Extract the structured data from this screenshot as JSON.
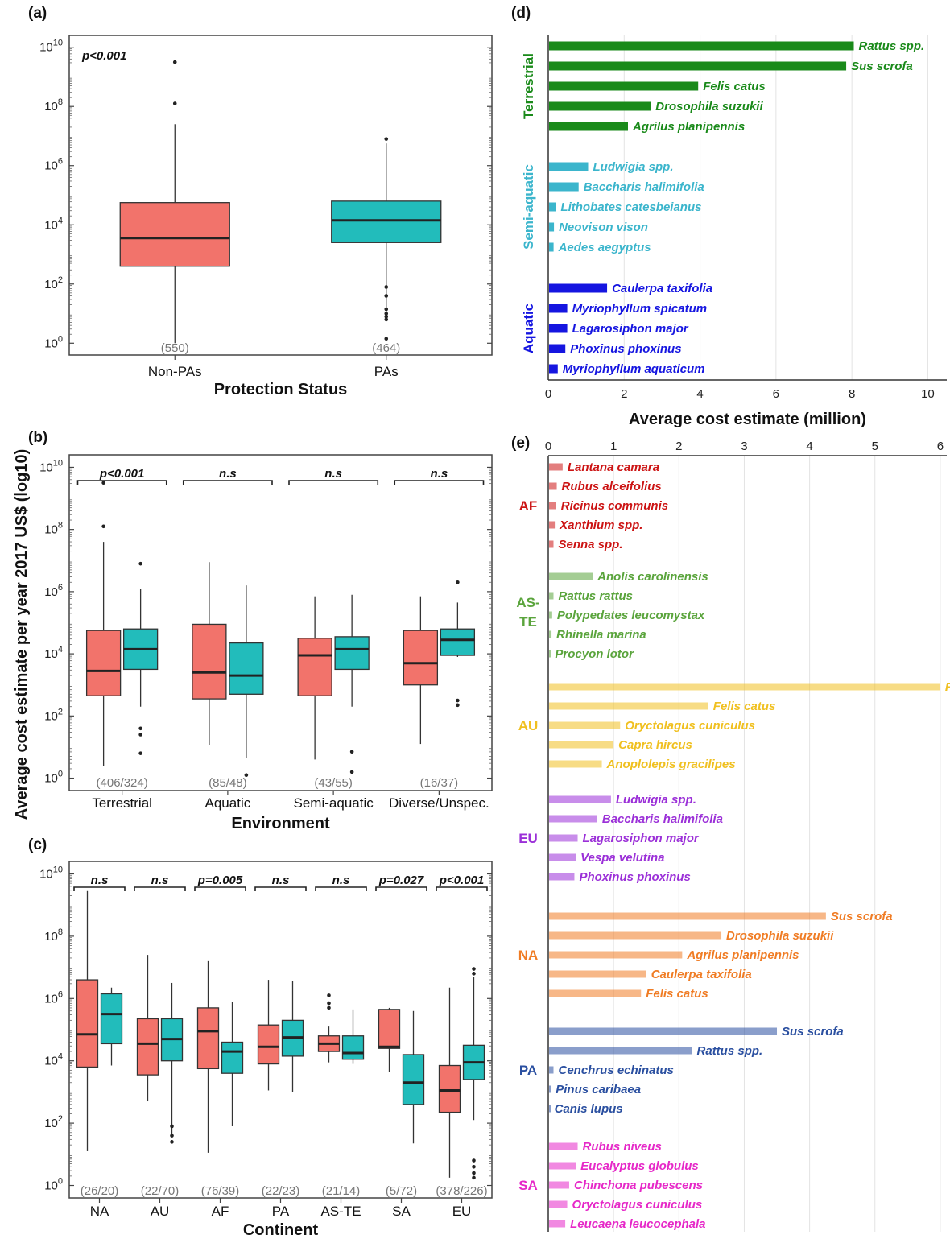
{
  "colors": {
    "non_pa": "#f2736b",
    "pa": "#22bcbb",
    "terrestrial": "#1a8a1a",
    "semi_aquatic": "#3bb5cc",
    "aquatic": "#1515e0",
    "AF": "#cc1414",
    "AS-TE": "#5aa43c",
    "AU": "#f0c020",
    "EU": "#9b30d8",
    "NA": "#f07c24",
    "PA": "#2a4fa0",
    "SA": "#e628c8"
  },
  "y_axis_label": "Average cost estimate per year 2017 US$ (log10)",
  "chart_data": [
    {
      "id": "a",
      "panel_label": "(a)",
      "type": "box",
      "scale": "log10",
      "ylim_log10": [
        -0.4,
        10.4
      ],
      "y_ticks": [
        "10^0",
        "10^2",
        "10^4",
        "10^6",
        "10^8",
        "10^10"
      ],
      "xlabel": "Protection Status",
      "annotation": "p<0.001",
      "categories": [
        "Non-PAs",
        "PAs"
      ],
      "counts": [
        "(550)",
        "(464)"
      ],
      "boxes": [
        {
          "cat": "Non-PAs",
          "group": "non_pa",
          "whisker_low": 0,
          "q1": 2.6,
          "median": 3.55,
          "q3": 4.75,
          "whisker_high": 7.4,
          "outliers": [
            8.1,
            9.5
          ]
        },
        {
          "cat": "PAs",
          "group": "pa",
          "whisker_low": 1.0,
          "q1": 3.4,
          "median": 4.15,
          "q3": 4.8,
          "whisker_high": 6.75,
          "outliers": [
            6.9,
            1.9,
            1.6,
            1.15,
            1.0,
            0.9,
            0.8,
            0.15
          ]
        }
      ]
    },
    {
      "id": "b",
      "panel_label": "(b)",
      "type": "box",
      "scale": "log10",
      "ylim_log10": [
        -0.4,
        10.4
      ],
      "y_ticks": [
        "10^0",
        "10^2",
        "10^4",
        "10^6",
        "10^8",
        "10^10"
      ],
      "xlabel": "Environment",
      "categories": [
        "Terrestrial",
        "Aquatic",
        "Semi-aquatic",
        "Diverse/Unspec."
      ],
      "counts": [
        "(406/324)",
        "(85/48)",
        "(43/55)",
        "(16/37)"
      ],
      "significance": [
        "p<0.001",
        "n.s",
        "n.s",
        "n.s"
      ],
      "boxes": [
        {
          "cat": "Terrestrial",
          "group": "non_pa",
          "whisker_low": 0.4,
          "q1": 2.65,
          "median": 3.45,
          "q3": 4.75,
          "whisker_high": 7.6,
          "outliers": [
            8.1,
            9.5
          ]
        },
        {
          "cat": "Terrestrial",
          "group": "pa",
          "whisker_low": 2.3,
          "q1": 3.5,
          "median": 4.15,
          "q3": 4.8,
          "whisker_high": 6.1,
          "outliers": [
            6.9,
            1.6,
            1.4,
            0.8
          ]
        },
        {
          "cat": "Aquatic",
          "group": "non_pa",
          "whisker_low": 1.05,
          "q1": 2.55,
          "median": 3.4,
          "q3": 4.95,
          "whisker_high": 6.95,
          "outliers": []
        },
        {
          "cat": "Aquatic",
          "group": "pa",
          "whisker_low": 0.65,
          "q1": 2.7,
          "median": 3.3,
          "q3": 4.35,
          "whisker_high": 6.2,
          "outliers": [
            0.1
          ]
        },
        {
          "cat": "Semi-aquatic",
          "group": "non_pa",
          "whisker_low": 0.6,
          "q1": 2.65,
          "median": 3.95,
          "q3": 4.5,
          "whisker_high": 5.85,
          "outliers": []
        },
        {
          "cat": "Semi-aquatic",
          "group": "pa",
          "whisker_low": 2.3,
          "q1": 3.5,
          "median": 4.15,
          "q3": 4.55,
          "whisker_high": 5.9,
          "outliers": [
            0.85,
            0.2
          ]
        },
        {
          "cat": "Diverse/Unspec.",
          "group": "non_pa",
          "whisker_low": 1.1,
          "q1": 3.0,
          "median": 3.7,
          "q3": 4.75,
          "whisker_high": 5.85,
          "outliers": []
        },
        {
          "cat": "Diverse/Unspec.",
          "group": "pa",
          "whisker_low": 3.9,
          "q1": 3.95,
          "median": 4.45,
          "q3": 4.8,
          "whisker_high": 5.65,
          "outliers": [
            6.3,
            2.5,
            2.35
          ]
        }
      ]
    },
    {
      "id": "c",
      "panel_label": "(c)",
      "type": "box",
      "scale": "log10",
      "ylim_log10": [
        -0.4,
        10.4
      ],
      "y_ticks": [
        "10^0",
        "10^2",
        "10^4",
        "10^6",
        "10^8",
        "10^10"
      ],
      "xlabel": "Continent",
      "categories": [
        "NA",
        "AU",
        "AF",
        "PA",
        "AS-TE",
        "SA",
        "EU"
      ],
      "counts": [
        "(26/20)",
        "(22/70)",
        "(76/39)",
        "(22/23)",
        "(21/14)",
        "(5/72)",
        "(378/226)"
      ],
      "significance": [
        "n.s",
        "n.s",
        "p=0.005",
        "n.s",
        "n.s",
        "p=0.027",
        "p<0.001"
      ],
      "boxes": [
        {
          "cat": "NA",
          "group": "non_pa",
          "whisker_low": 1.1,
          "q1": 3.8,
          "median": 4.85,
          "q3": 6.6,
          "whisker_high": 9.45,
          "outliers": []
        },
        {
          "cat": "NA",
          "group": "pa",
          "whisker_low": 3.85,
          "q1": 4.55,
          "median": 5.5,
          "q3": 6.15,
          "whisker_high": 6.35,
          "outliers": []
        },
        {
          "cat": "AU",
          "group": "non_pa",
          "whisker_low": 2.7,
          "q1": 3.55,
          "median": 4.55,
          "q3": 5.35,
          "whisker_high": 7.4,
          "outliers": []
        },
        {
          "cat": "AU",
          "group": "pa",
          "whisker_low": 1.55,
          "q1": 4.0,
          "median": 4.7,
          "q3": 5.35,
          "whisker_high": 6.5,
          "outliers": [
            1.9,
            1.6,
            1.4
          ]
        },
        {
          "cat": "AF",
          "group": "non_pa",
          "whisker_low": 1.05,
          "q1": 3.75,
          "median": 4.95,
          "q3": 5.7,
          "whisker_high": 7.2,
          "outliers": []
        },
        {
          "cat": "AF",
          "group": "pa",
          "whisker_low": 1.9,
          "q1": 3.6,
          "median": 4.3,
          "q3": 4.6,
          "whisker_high": 5.9,
          "outliers": []
        },
        {
          "cat": "PA",
          "group": "non_pa",
          "whisker_low": 3.05,
          "q1": 3.9,
          "median": 4.45,
          "q3": 5.15,
          "whisker_high": 6.6,
          "outliers": []
        },
        {
          "cat": "PA",
          "group": "pa",
          "whisker_low": 3.0,
          "q1": 4.15,
          "median": 4.75,
          "q3": 5.3,
          "whisker_high": 6.55,
          "outliers": []
        },
        {
          "cat": "AS-TE",
          "group": "non_pa",
          "whisker_low": 3.95,
          "q1": 4.3,
          "median": 4.55,
          "q3": 4.8,
          "whisker_high": 5.1,
          "outliers": [
            6.1,
            5.85,
            5.7
          ]
        },
        {
          "cat": "AS-TE",
          "group": "pa",
          "whisker_low": 3.9,
          "q1": 4.05,
          "median": 4.25,
          "q3": 4.8,
          "whisker_high": 5.65,
          "outliers": []
        },
        {
          "cat": "SA",
          "group": "non_pa",
          "whisker_low": 3.65,
          "q1": 4.4,
          "median": 4.45,
          "q3": 5.65,
          "whisker_high": 5.7,
          "outliers": []
        },
        {
          "cat": "SA",
          "group": "pa",
          "whisker_low": 1.35,
          "q1": 2.6,
          "median": 3.3,
          "q3": 4.2,
          "whisker_high": 5.6,
          "outliers": []
        },
        {
          "cat": "EU",
          "group": "non_pa",
          "whisker_low": 0.25,
          "q1": 2.35,
          "median": 3.05,
          "q3": 3.85,
          "whisker_high": 6.35,
          "outliers": []
        },
        {
          "cat": "EU",
          "group": "pa",
          "whisker_low": 2.1,
          "q1": 3.4,
          "median": 3.95,
          "q3": 4.5,
          "whisker_high": 6.7,
          "outliers": [
            6.95,
            6.8,
            0.8,
            0.6,
            0.4,
            0.25
          ]
        }
      ]
    },
    {
      "id": "d",
      "panel_label": "(d)",
      "type": "bar",
      "orientation": "horizontal",
      "xlabel": "Average cost estimate (million)",
      "xlim": [
        0,
        10.5
      ],
      "x_ticks": [
        "0",
        "2",
        "4",
        "6",
        "8",
        "10"
      ],
      "groups": [
        {
          "label": "Terrestrial",
          "color_key": "terrestrial",
          "items": [
            {
              "name": "Rattus spp.",
              "value": 8.05
            },
            {
              "name": "Sus scrofa",
              "value": 7.85
            },
            {
              "name": "Felis catus",
              "value": 3.95
            },
            {
              "name": "Drosophila suzukii",
              "value": 2.7
            },
            {
              "name": "Agrilus planipennis",
              "value": 2.1
            }
          ]
        },
        {
          "label": "Semi-aquatic",
          "color_key": "semi_aquatic",
          "items": [
            {
              "name": "Ludwigia spp.",
              "value": 1.05
            },
            {
              "name": "Baccharis halimifolia",
              "value": 0.8
            },
            {
              "name": "Lithobates catesbeianus",
              "value": 0.2
            },
            {
              "name": "Neovison vison",
              "value": 0.15
            },
            {
              "name": "Aedes aegyptus",
              "value": 0.14
            }
          ]
        },
        {
          "label": "Aquatic",
          "color_key": "aquatic",
          "items": [
            {
              "name": "Caulerpa taxifolia",
              "value": 1.55
            },
            {
              "name": "Myriophyllum spicatum",
              "value": 0.5
            },
            {
              "name": "Lagarosiphon major",
              "value": 0.5
            },
            {
              "name": "Phoxinus phoxinus",
              "value": 0.45
            },
            {
              "name": "Myriophyllum aquaticum",
              "value": 0.25
            }
          ]
        }
      ]
    },
    {
      "id": "e",
      "panel_label": "(e)",
      "type": "bar",
      "orientation": "horizontal",
      "xlim": [
        0,
        6.1
      ],
      "x_ticks": [
        "0",
        "1",
        "2",
        "3",
        "4",
        "5",
        "6"
      ],
      "groups": [
        {
          "label": "AF",
          "color_key": "AF",
          "items": [
            {
              "name": "Lantana camara",
              "value": 0.22
            },
            {
              "name": "Rubus alceifolius",
              "value": 0.13
            },
            {
              "name": "Ricinus communis",
              "value": 0.12
            },
            {
              "name": "Xanthium spp.",
              "value": 0.1
            },
            {
              "name": "Senna spp.",
              "value": 0.08
            }
          ]
        },
        {
          "label": "AS-TE",
          "color_key": "AS-TE",
          "items": [
            {
              "name": "Anolis carolinensis",
              "value": 0.68
            },
            {
              "name": "Rattus rattus",
              "value": 0.08
            },
            {
              "name": "Polypedates leucomystax",
              "value": 0.06
            },
            {
              "name": "Rhinella marina",
              "value": 0.05
            },
            {
              "name": "Procyon lotor",
              "value": 0.03
            }
          ]
        },
        {
          "label": "AU",
          "color_key": "AU",
          "items": [
            {
              "name": "Rattus spp.",
              "value": 6.0
            },
            {
              "name": "Felis catus",
              "value": 2.45
            },
            {
              "name": "Oryctolagus cuniculus",
              "value": 1.1
            },
            {
              "name": "Capra hircus",
              "value": 1.0
            },
            {
              "name": "Anoplolepis gracilipes",
              "value": 0.82
            }
          ]
        },
        {
          "label": "EU",
          "color_key": "EU",
          "items": [
            {
              "name": "Ludwigia spp.",
              "value": 0.96
            },
            {
              "name": "Baccharis halimifolia",
              "value": 0.75
            },
            {
              "name": "Lagarosiphon major",
              "value": 0.45
            },
            {
              "name": "Vespa velutina",
              "value": 0.42
            },
            {
              "name": "Phoxinus phoxinus",
              "value": 0.4
            }
          ]
        },
        {
          "label": "NA",
          "color_key": "NA",
          "items": [
            {
              "name": "Sus scrofa",
              "value": 4.25
            },
            {
              "name": "Drosophila suzukii",
              "value": 2.65
            },
            {
              "name": "Agrilus planipennis",
              "value": 2.05
            },
            {
              "name": "Caulerpa taxifolia",
              "value": 1.5
            },
            {
              "name": "Felis catus",
              "value": 1.42
            }
          ]
        },
        {
          "label": "PA",
          "color_key": "PA",
          "items": [
            {
              "name": "Sus scrofa",
              "value": 3.5
            },
            {
              "name": "Rattus spp.",
              "value": 2.2
            },
            {
              "name": "Cenchrus echinatus",
              "value": 0.08
            },
            {
              "name": "Pinus caribaea",
              "value": 0.04
            },
            {
              "name": "Canis lupus",
              "value": 0.02
            }
          ]
        },
        {
          "label": "SA",
          "color_key": "SA",
          "items": [
            {
              "name": "Rubus niveus",
              "value": 0.45
            },
            {
              "name": "Eucalyptus globulus",
              "value": 0.42
            },
            {
              "name": "Chinchona pubescens",
              "value": 0.32
            },
            {
              "name": "Oryctolagus cuniculus",
              "value": 0.29
            },
            {
              "name": "Leucaena leucocephala",
              "value": 0.26
            }
          ]
        }
      ]
    }
  ]
}
